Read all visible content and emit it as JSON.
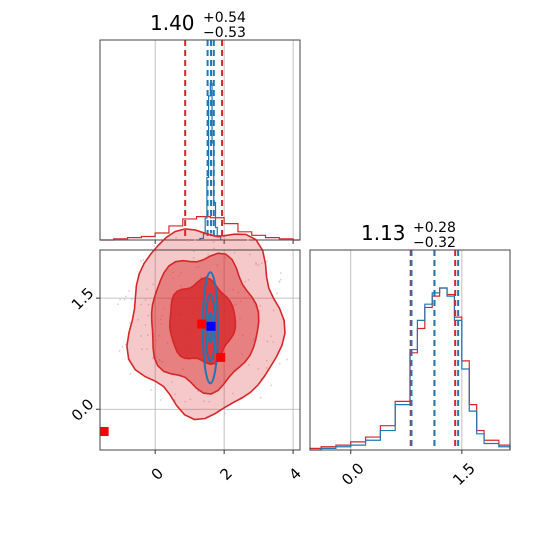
{
  "chart_data": {
    "type": "corner",
    "grid": true,
    "colors": {
      "red": "#d62728",
      "blue": "#1f77b4",
      "marker_blue": "#0000ff",
      "marker_red": "#ff0000"
    },
    "parameters": [
      {
        "title": {
          "value": "1.40",
          "plus": "+0.54",
          "minus": "−0.53"
        },
        "range": [
          -1.6,
          4.2
        ],
        "ticks": [
          {
            "value": 0,
            "label": "0"
          },
          {
            "value": 2,
            "label": "2"
          },
          {
            "value": 4,
            "label": "4"
          }
        ],
        "quantile_lines_red": [
          0.87,
          1.94
        ],
        "quantile_lines_blue": [
          1.52,
          1.62,
          1.7
        ],
        "hist_red": {
          "bins": [
            -1.6,
            -1.2,
            -0.8,
            -0.4,
            0.0,
            0.4,
            0.8,
            1.2,
            1.6,
            2.0,
            2.4,
            2.8,
            3.2,
            3.6,
            4.0,
            4.2
          ],
          "counts": [
            0,
            1,
            2,
            3,
            6,
            12,
            18,
            20,
            19,
            14,
            7,
            4,
            2,
            1,
            0
          ]
        },
        "hist_blue": {
          "bins": [
            1.3,
            1.4,
            1.45,
            1.5,
            1.55,
            1.6,
            1.65,
            1.7,
            1.75,
            1.8,
            1.9
          ],
          "counts": [
            1,
            4,
            14,
            40,
            92,
            100,
            62,
            24,
            8,
            2
          ]
        }
      },
      {
        "title": {
          "value": "1.13",
          "plus": "+0.28",
          "minus": "−0.32"
        },
        "range": [
          -0.55,
          2.15
        ],
        "ticks": [
          {
            "value": 0.0,
            "label": "0.0"
          },
          {
            "value": 1.5,
            "label": "1.5"
          }
        ],
        "quantile_lines_red": [
          0.81,
          1.13,
          1.41
        ],
        "quantile_lines_blue": [
          0.82,
          1.13,
          1.45
        ],
        "hist_red": {
          "bins": [
            -0.55,
            -0.4,
            -0.2,
            0.0,
            0.2,
            0.4,
            0.6,
            0.8,
            0.9,
            1.0,
            1.1,
            1.2,
            1.3,
            1.4,
            1.5,
            1.6,
            1.7,
            1.8,
            2.0,
            2.15
          ],
          "counts": [
            1,
            2,
            3,
            5,
            8,
            15,
            30,
            60,
            75,
            88,
            95,
            100,
            96,
            82,
            55,
            28,
            12,
            6,
            3
          ]
        },
        "hist_blue": {
          "bins": [
            -0.55,
            -0.4,
            -0.2,
            0.0,
            0.2,
            0.4,
            0.6,
            0.8,
            0.9,
            1.0,
            1.1,
            1.2,
            1.3,
            1.4,
            1.5,
            1.6,
            1.7,
            1.8,
            2.0,
            2.15
          ],
          "counts": [
            0,
            1,
            2,
            3,
            6,
            12,
            28,
            62,
            80,
            90,
            97,
            100,
            95,
            80,
            50,
            24,
            10,
            4,
            2
          ]
        }
      }
    ],
    "scatter_2d": {
      "x_param": 0,
      "y_param": 1,
      "red_contour_levels": [
        {
          "center": [
            1.45,
            1.2
          ],
          "rx": 2.2,
          "ry": 1.25,
          "opacity": 0.25
        },
        {
          "center": [
            1.4,
            1.18
          ],
          "rx": 1.55,
          "ry": 0.9,
          "opacity": 0.45
        },
        {
          "center": [
            1.35,
            1.18
          ],
          "rx": 0.95,
          "ry": 0.55,
          "opacity": 0.8
        }
      ],
      "blue_contour_levels": [
        {
          "center": [
            1.6,
            1.1
          ],
          "rx": 0.22,
          "ry": 0.75
        },
        {
          "center": [
            1.6,
            1.1
          ],
          "rx": 0.14,
          "ry": 0.45
        },
        {
          "center": [
            1.6,
            1.1
          ],
          "rx": 0.07,
          "ry": 0.2
        }
      ],
      "markers": [
        {
          "x": 1.62,
          "y": 1.12,
          "color": "#0000ff"
        },
        {
          "x": -1.48,
          "y": -0.3,
          "color": "#ff0000"
        },
        {
          "x": 1.35,
          "y": 1.15,
          "color": "#ff0000"
        },
        {
          "x": 1.9,
          "y": 0.7,
          "color": "#ff0000"
        }
      ]
    }
  }
}
